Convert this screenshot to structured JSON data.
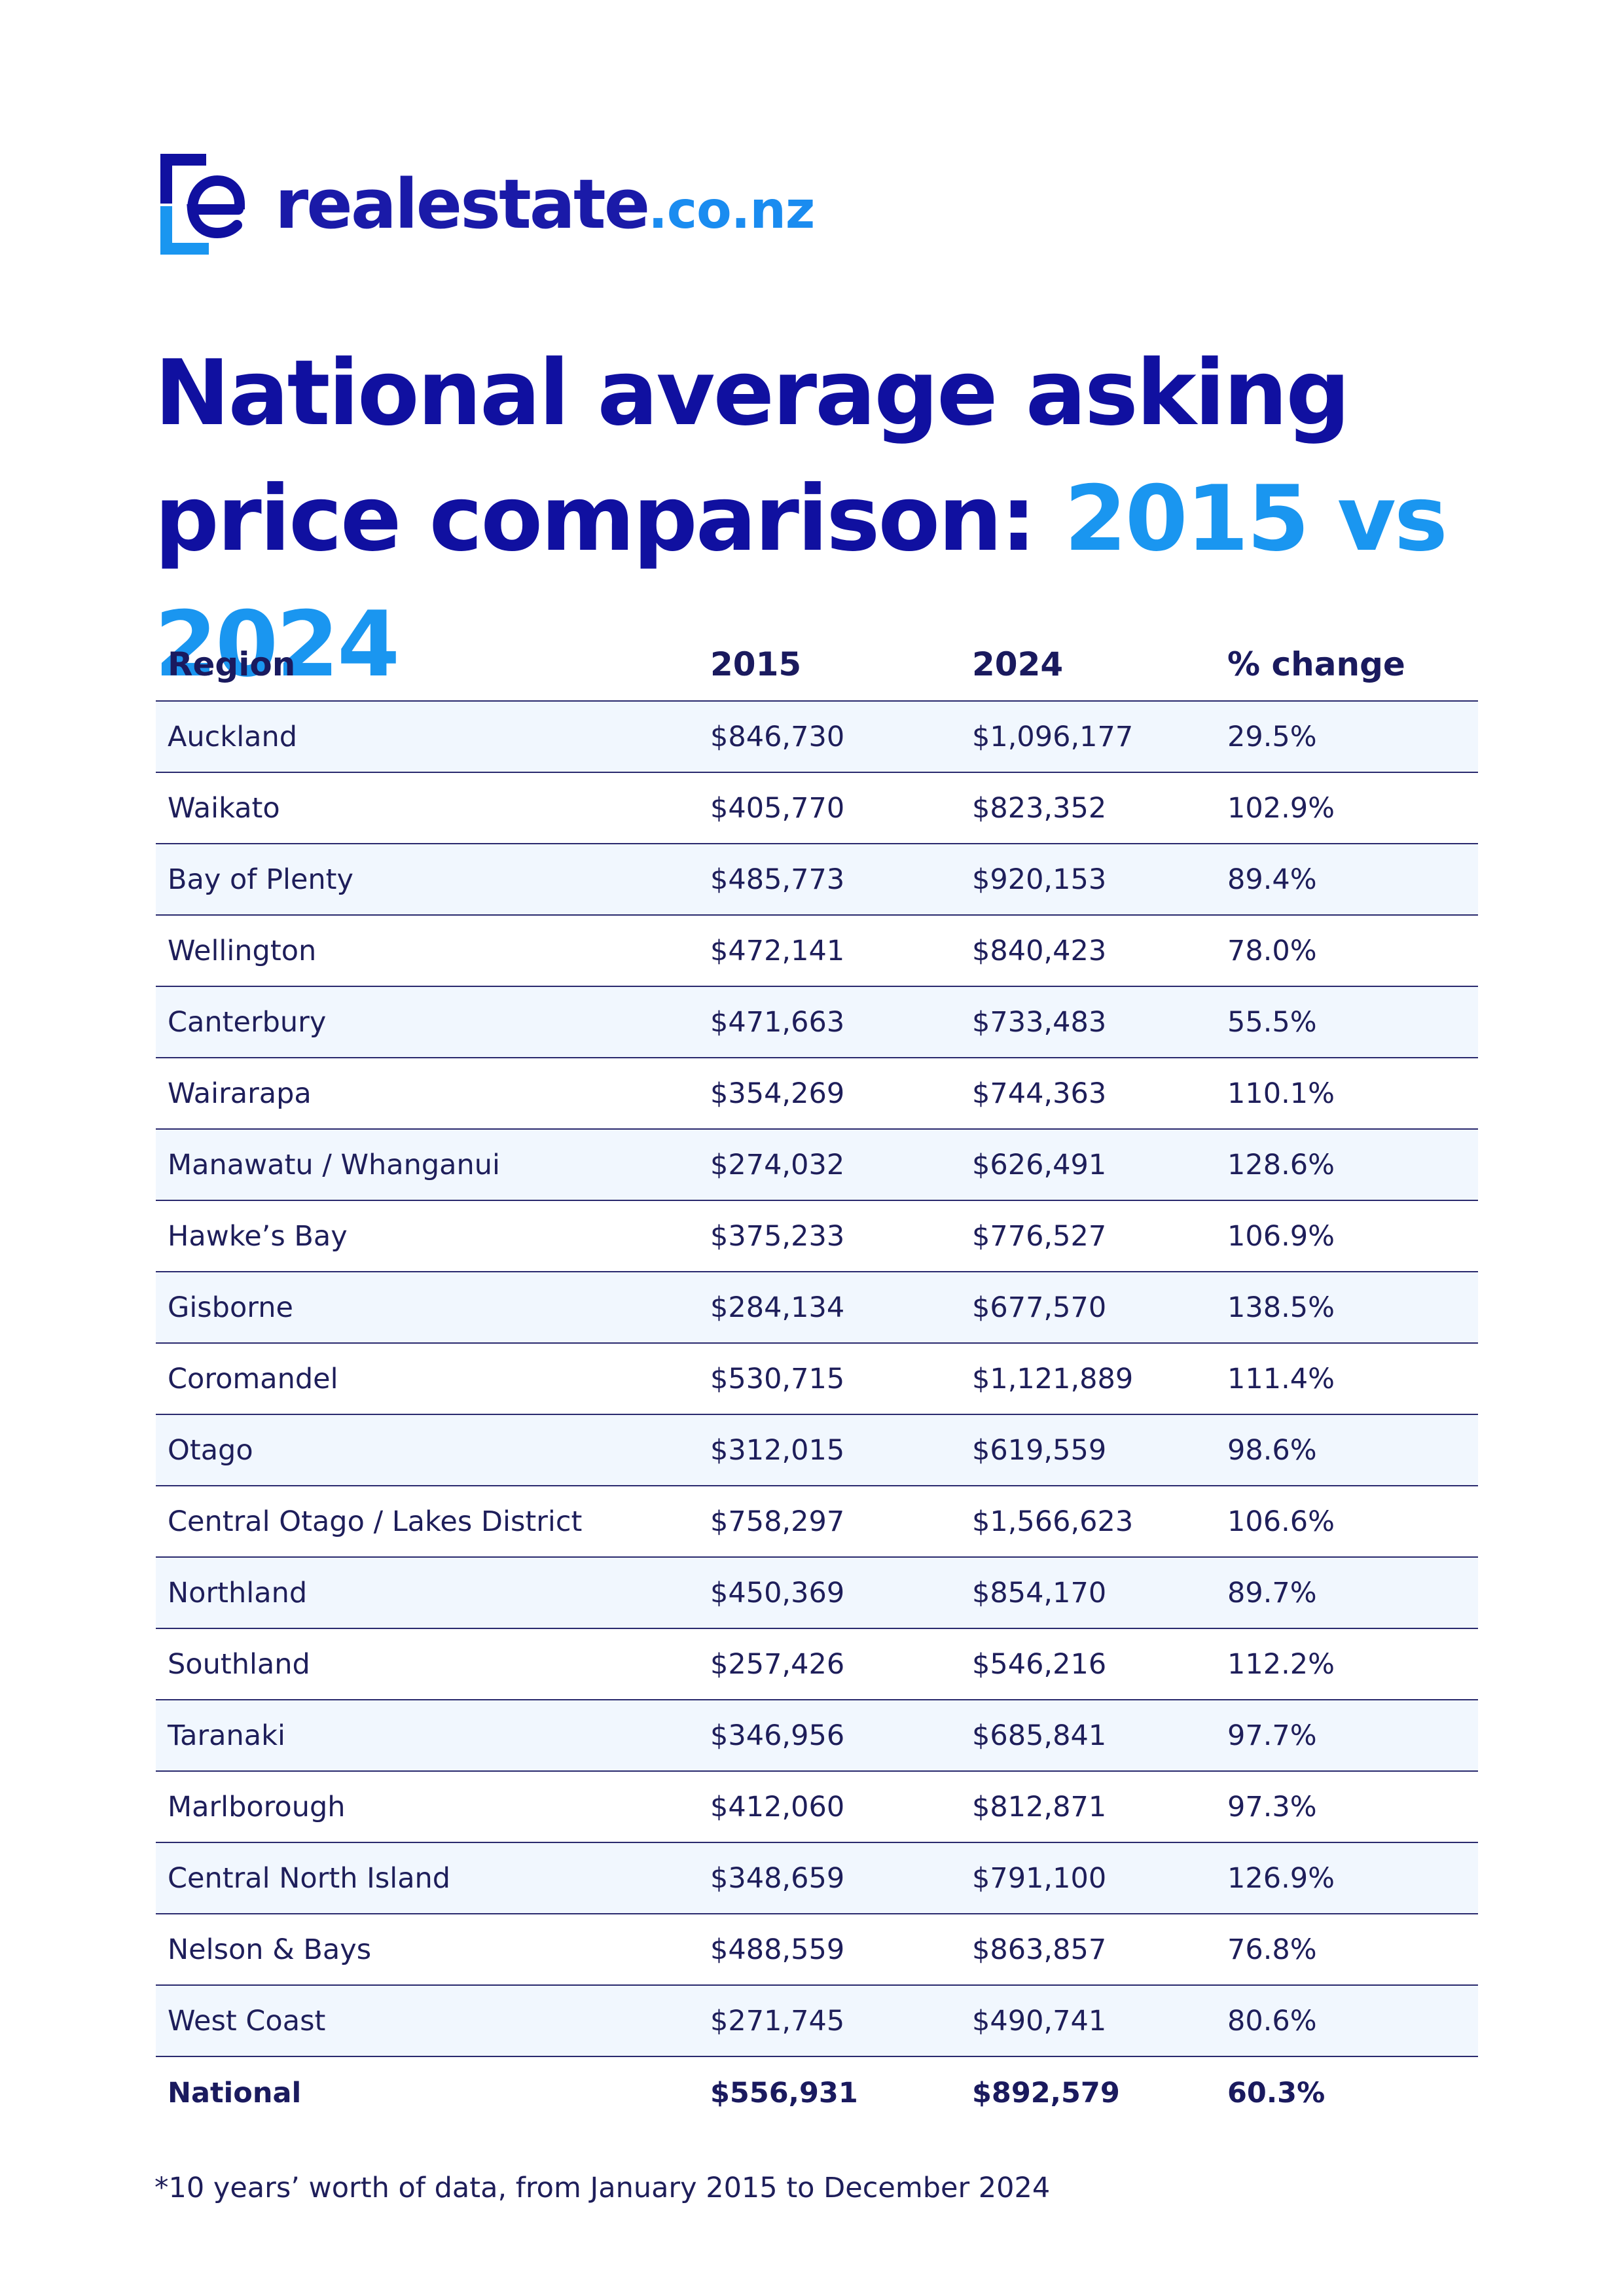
{
  "brand": {
    "name": "realestate",
    "suffix": ".co.nz",
    "colors": {
      "primary": "#1010a0",
      "accent": "#1a96f0",
      "text": "#1e1e5a",
      "row_shade": "#f1f7fe"
    }
  },
  "title": {
    "main": "National average asking price comparison: ",
    "highlight": "2015 vs 2024"
  },
  "table": {
    "headers": [
      "Region",
      "2015",
      "2024",
      "% change"
    ],
    "rows": [
      [
        "Auckland",
        "$846,730",
        "$1,096,177",
        "29.5%"
      ],
      [
        "Waikato",
        "$405,770",
        "$823,352",
        "102.9%"
      ],
      [
        "Bay of Plenty",
        "$485,773",
        "$920,153",
        "89.4%"
      ],
      [
        "Wellington",
        "$472,141",
        "$840,423",
        "78.0%"
      ],
      [
        "Canterbury",
        "$471,663",
        "$733,483",
        "55.5%"
      ],
      [
        "Wairarapa",
        "$354,269",
        "$744,363",
        "110.1%"
      ],
      [
        "Manawatu / Whanganui",
        "$274,032",
        "$626,491",
        "128.6%"
      ],
      [
        "Hawke’s Bay",
        "$375,233",
        "$776,527",
        "106.9%"
      ],
      [
        "Gisborne",
        "$284,134",
        "$677,570",
        "138.5%"
      ],
      [
        "Coromandel",
        "$530,715",
        "$1,121,889",
        "111.4%"
      ],
      [
        "Otago",
        "$312,015",
        "$619,559",
        "98.6%"
      ],
      [
        "Central Otago / Lakes District",
        "$758,297",
        "$1,566,623",
        "106.6%"
      ],
      [
        "Northland",
        "$450,369",
        "$854,170",
        "89.7%"
      ],
      [
        "Southland",
        "$257,426",
        "$546,216",
        "112.2%"
      ],
      [
        "Taranaki",
        "$346,956",
        "$685,841",
        "97.7%"
      ],
      [
        "Marlborough",
        "$412,060",
        "$812,871",
        "97.3%"
      ],
      [
        "Central North Island",
        "$348,659",
        "$791,100",
        "126.9%"
      ],
      [
        "Nelson & Bays",
        "$488,559",
        "$863,857",
        "76.8%"
      ],
      [
        "West Coast",
        "$271,745",
        "$490,741",
        "80.6%"
      ]
    ],
    "total": [
      "National",
      "$556,931",
      "$892,579",
      "60.3%"
    ]
  },
  "footnote": "*10 years’ worth of data, from January 2015 to December 2024"
}
